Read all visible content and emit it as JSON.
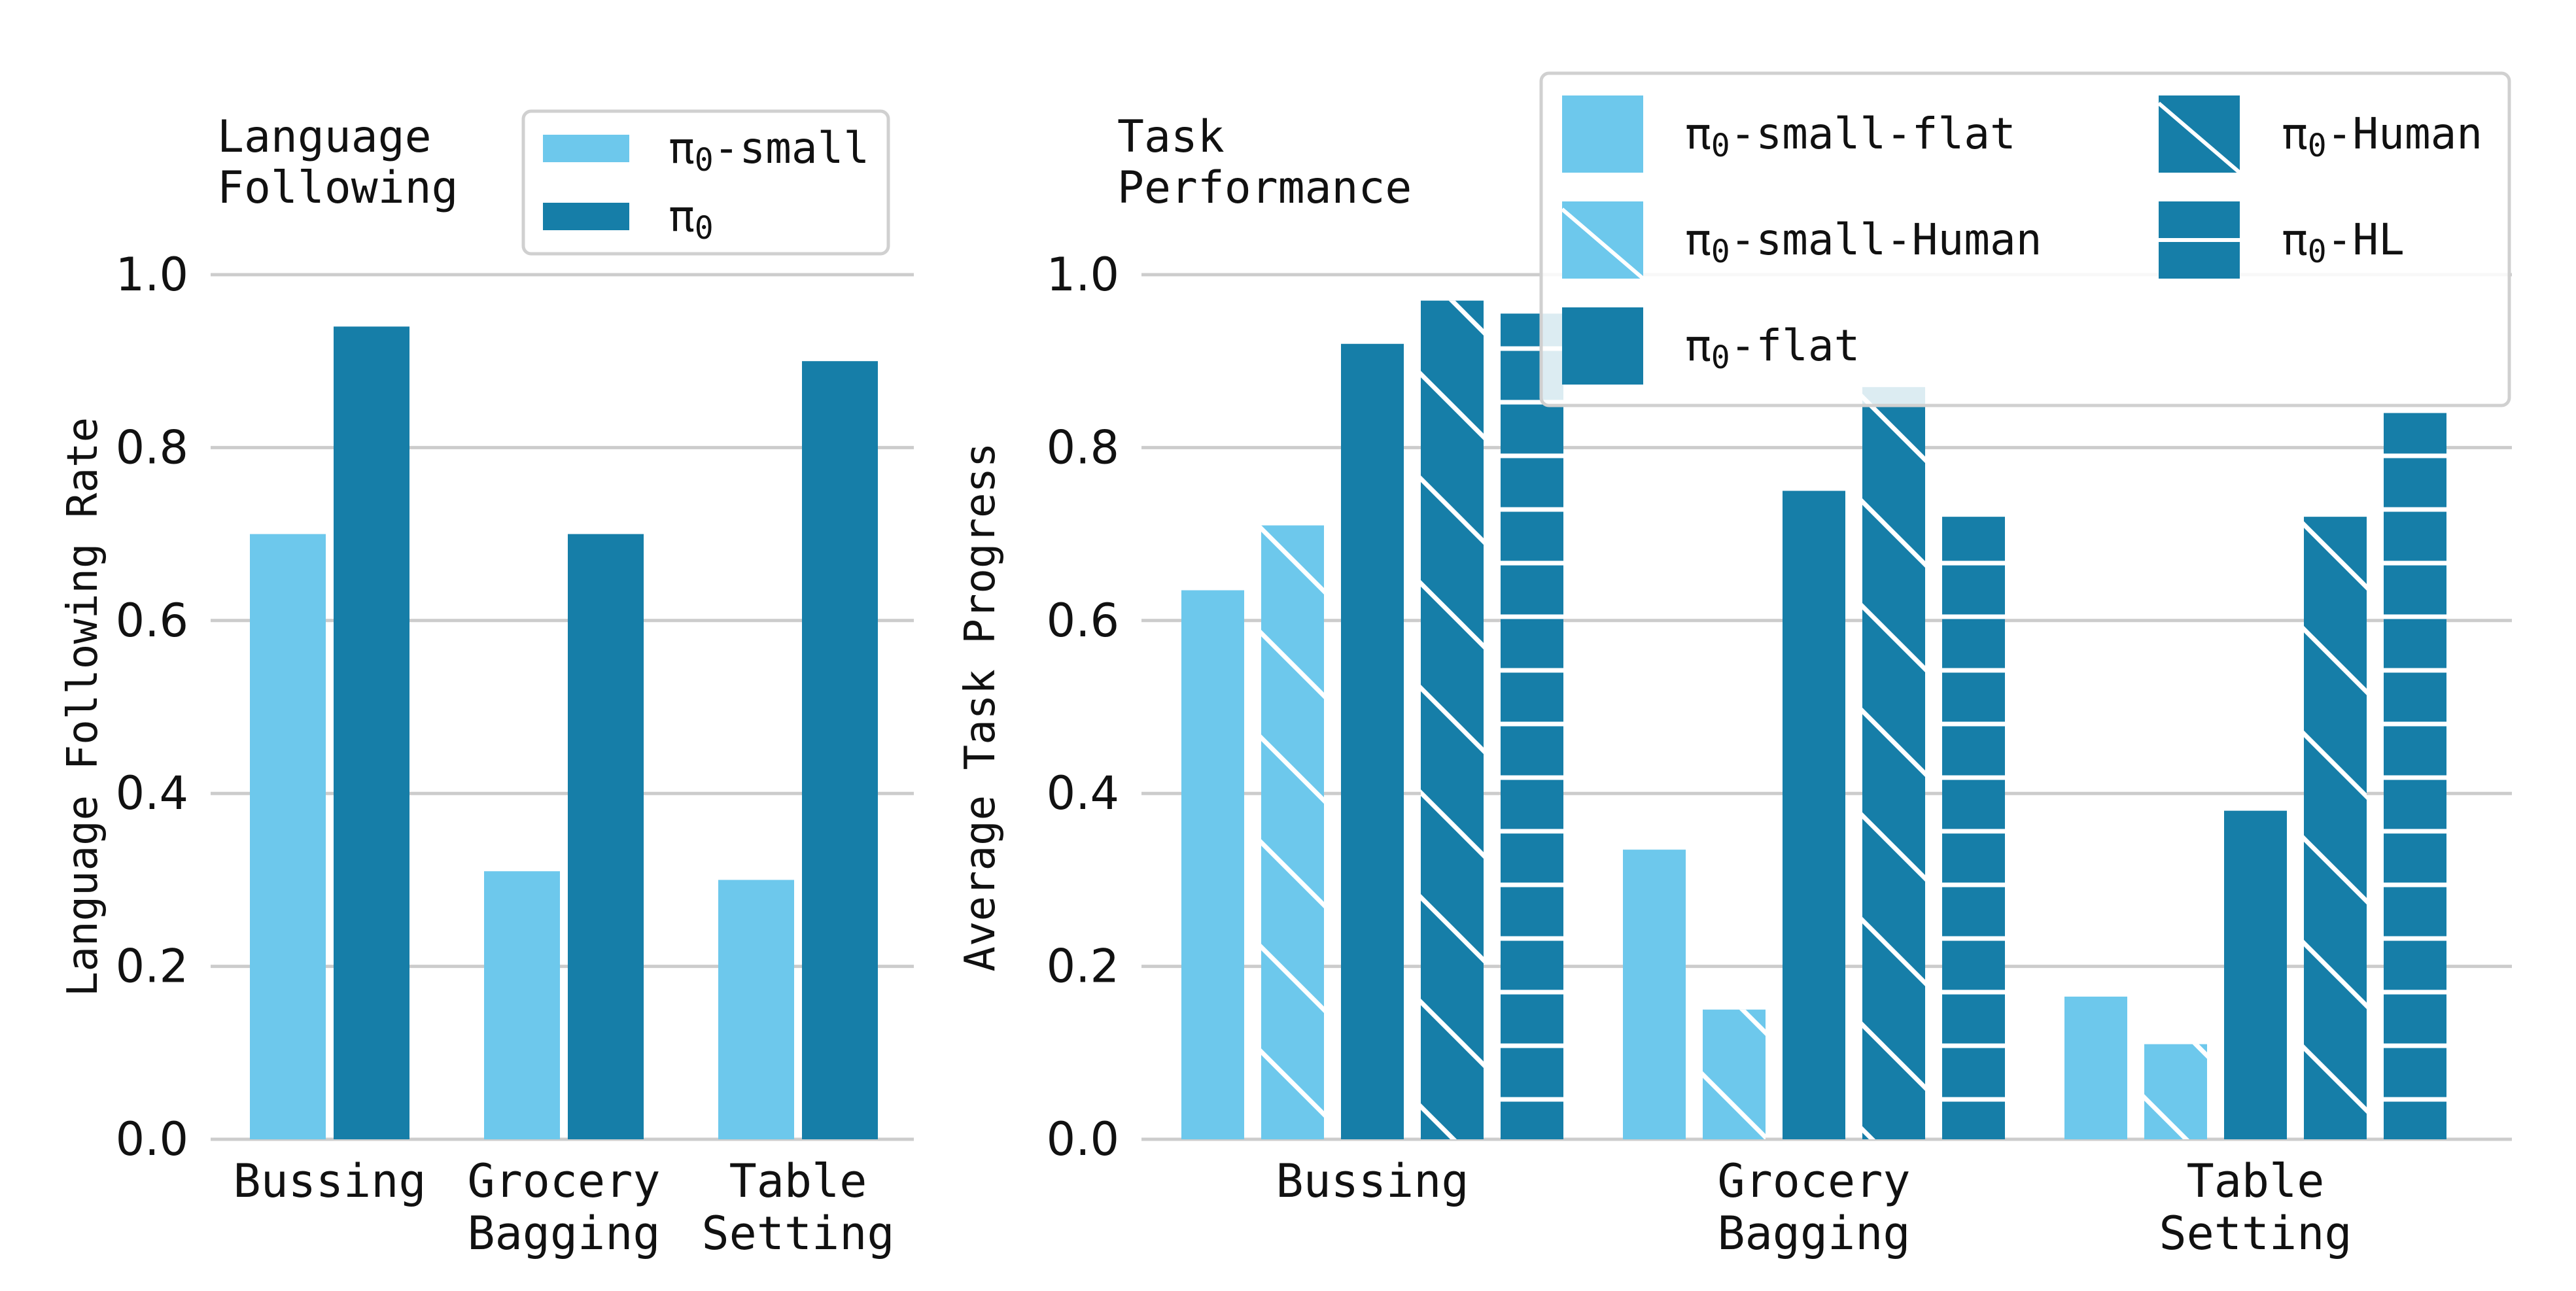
{
  "colors": {
    "light": "#6dc8ec",
    "dark": "#167ea8",
    "grid": "#cccccc",
    "text": "#111111"
  },
  "chart_data": [
    {
      "type": "bar",
      "title_lines": [
        "Language",
        "Following"
      ],
      "ylabel": "Language Following Rate",
      "ylim": [
        0,
        1.0
      ],
      "yticks": [
        "0.0",
        "0.2",
        "0.4",
        "0.6",
        "0.8",
        "1.0"
      ],
      "categories": [
        [
          "Bussing"
        ],
        [
          "Grocery",
          "Bagging"
        ],
        [
          "Table",
          "Setting"
        ]
      ],
      "series": [
        {
          "name": "π₀-small",
          "color": "light",
          "hatch": "none",
          "values": [
            0.7,
            0.31,
            0.3
          ]
        },
        {
          "name": "π₀",
          "color": "dark",
          "hatch": "none",
          "values": [
            0.94,
            0.7,
            0.9
          ]
        }
      ],
      "legend_position": "top-right"
    },
    {
      "type": "bar",
      "title_lines": [
        "Task",
        "Performance"
      ],
      "ylabel": "Average Task Progress",
      "ylim": [
        0,
        1.0
      ],
      "yticks": [
        "0.0",
        "0.2",
        "0.4",
        "0.6",
        "0.8",
        "1.0"
      ],
      "categories": [
        [
          "Bussing"
        ],
        [
          "Grocery",
          "Bagging"
        ],
        [
          "Table",
          "Setting"
        ]
      ],
      "series": [
        {
          "name": "π₀-small-flat",
          "color": "light",
          "hatch": "none",
          "values": [
            0.635,
            0.335,
            0.165
          ]
        },
        {
          "name": "π₀-small-Human",
          "color": "light",
          "hatch": "diag",
          "values": [
            0.71,
            0.15,
            0.11
          ]
        },
        {
          "name": "π₀-flat",
          "color": "dark",
          "hatch": "none",
          "values": [
            0.92,
            0.75,
            0.38
          ]
        },
        {
          "name": "π₀-Human",
          "color": "dark",
          "hatch": "diag",
          "values": [
            0.97,
            0.87,
            0.72
          ]
        },
        {
          "name": "π₀-HL",
          "color": "dark",
          "hatch": "horiz",
          "values": [
            0.955,
            0.72,
            0.84
          ]
        }
      ],
      "legend_position": "top-right"
    }
  ]
}
